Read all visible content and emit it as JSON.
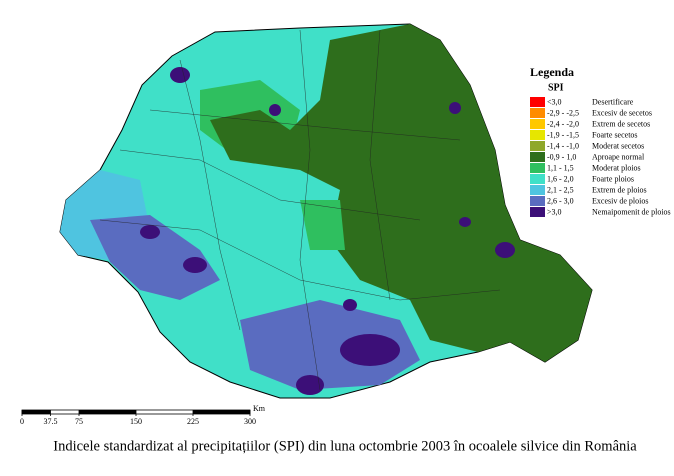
{
  "legend": {
    "title": "Legenda",
    "subtitle": "SPI",
    "entries": [
      {
        "range": "<3,0",
        "description": "Desertificare",
        "color": "#ff0000"
      },
      {
        "range": "-2,9 - -2,5",
        "description": "Excesiv de secetos",
        "color": "#ff8c00"
      },
      {
        "range": "-2,4 - -2,0",
        "description": "Extrem de secetos",
        "color": "#ffc800"
      },
      {
        "range": "-1,9 - -1,5",
        "description": "Foarte secetos",
        "color": "#e6e600"
      },
      {
        "range": "-1,4 - -1,0",
        "description": "Moderat secetos",
        "color": "#8fa82a"
      },
      {
        "range": "-0,9 - 1,0",
        "description": "Aproape normal",
        "color": "#2e6e1c"
      },
      {
        "range": "1,1 - 1,5",
        "description": "Moderat ploios",
        "color": "#2fbf5f"
      },
      {
        "range": "1,6 - 2,0",
        "description": "Foarte ploios",
        "color": "#40e0c8"
      },
      {
        "range": "2,1 - 2,5",
        "description": "Extrem de ploios",
        "color": "#4fc4e0"
      },
      {
        "range": "2,6 - 3,0",
        "description": "Excesiv de ploios",
        "color": "#5a6cc0"
      },
      {
        "range": ">3,0",
        "description": "Nemaipomenit de ploios",
        "color": "#3c0f78"
      }
    ]
  },
  "scale": {
    "ticks": [
      0,
      37.5,
      75,
      150,
      225,
      300
    ],
    "unit": "Km"
  },
  "caption": "Indicele standardizat al precipitațiilor (SPI) din luna octombrie 2003 în ocoalele silvice din România"
}
